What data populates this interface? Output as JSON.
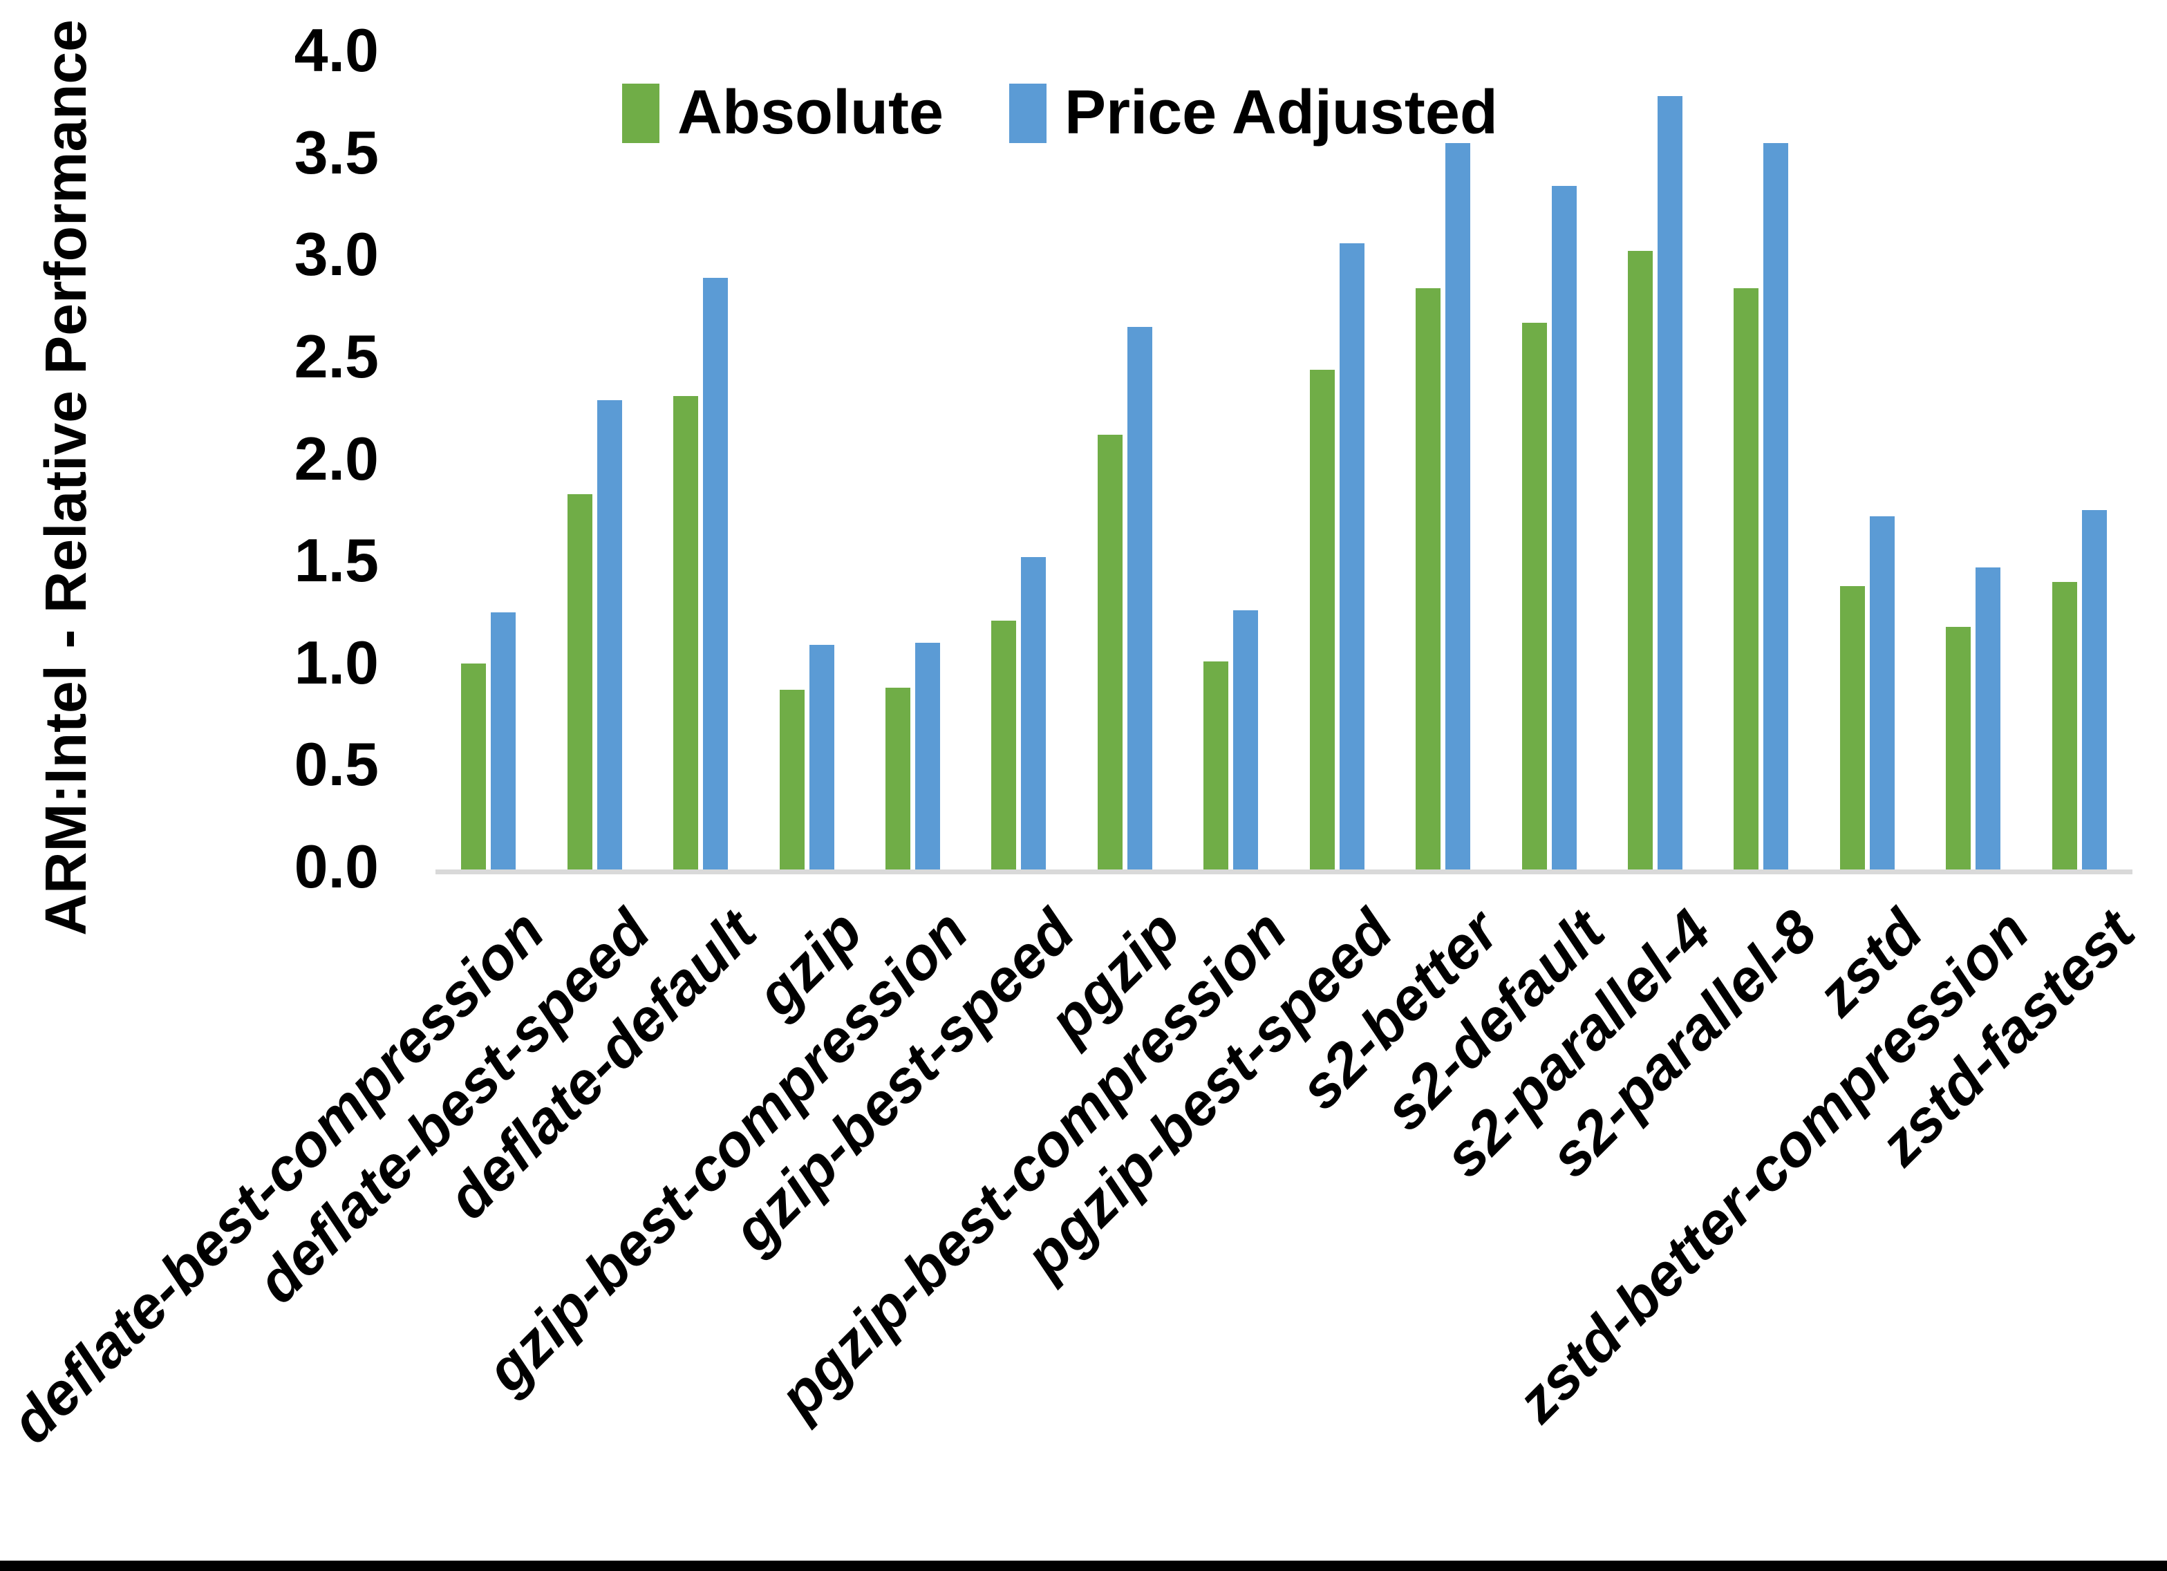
{
  "chart_data": {
    "type": "bar",
    "title": "",
    "xlabel": "",
    "ylabel": "ARM:Intel - Relative Performance",
    "ylim": [
      0,
      4
    ],
    "ytick_step": 0.5,
    "yticks": [
      "0.0",
      "0.5",
      "1.0",
      "1.5",
      "2.0",
      "2.5",
      "3.0",
      "3.5",
      "4.0"
    ],
    "grid": false,
    "legend_position": "top-center",
    "categories": [
      "deflate-best-compression",
      "deflate-best-speed",
      "deflate-default",
      "gzip",
      "gzip-best-compression",
      "gzip-best-speed",
      "pgzip",
      "pgzip-best-compression",
      "pgzip-best-speed",
      "s2-better",
      "s2-default",
      "s2-parallel-4",
      "s2-parallel-8",
      "zstd",
      "zstd-better-compression",
      "zstd-fastest"
    ],
    "series": [
      {
        "name": "Absolute",
        "color": "#70AD47",
        "values": [
          1.01,
          1.84,
          2.32,
          0.88,
          0.89,
          1.22,
          2.13,
          1.02,
          2.45,
          2.85,
          2.68,
          3.03,
          2.85,
          1.39,
          1.19,
          1.41
        ]
      },
      {
        "name": "Price Adjusted",
        "color": "#5B9BD5",
        "values": [
          1.26,
          2.3,
          2.9,
          1.1,
          1.11,
          1.53,
          2.66,
          1.27,
          3.07,
          3.56,
          3.35,
          3.79,
          3.56,
          1.73,
          1.48,
          1.76
        ]
      }
    ],
    "axis_line_color": "#D9D9D9",
    "text_color": "#000000",
    "background_color": "#FFFFFF",
    "window_bottom_bar_color": "#000000"
  }
}
